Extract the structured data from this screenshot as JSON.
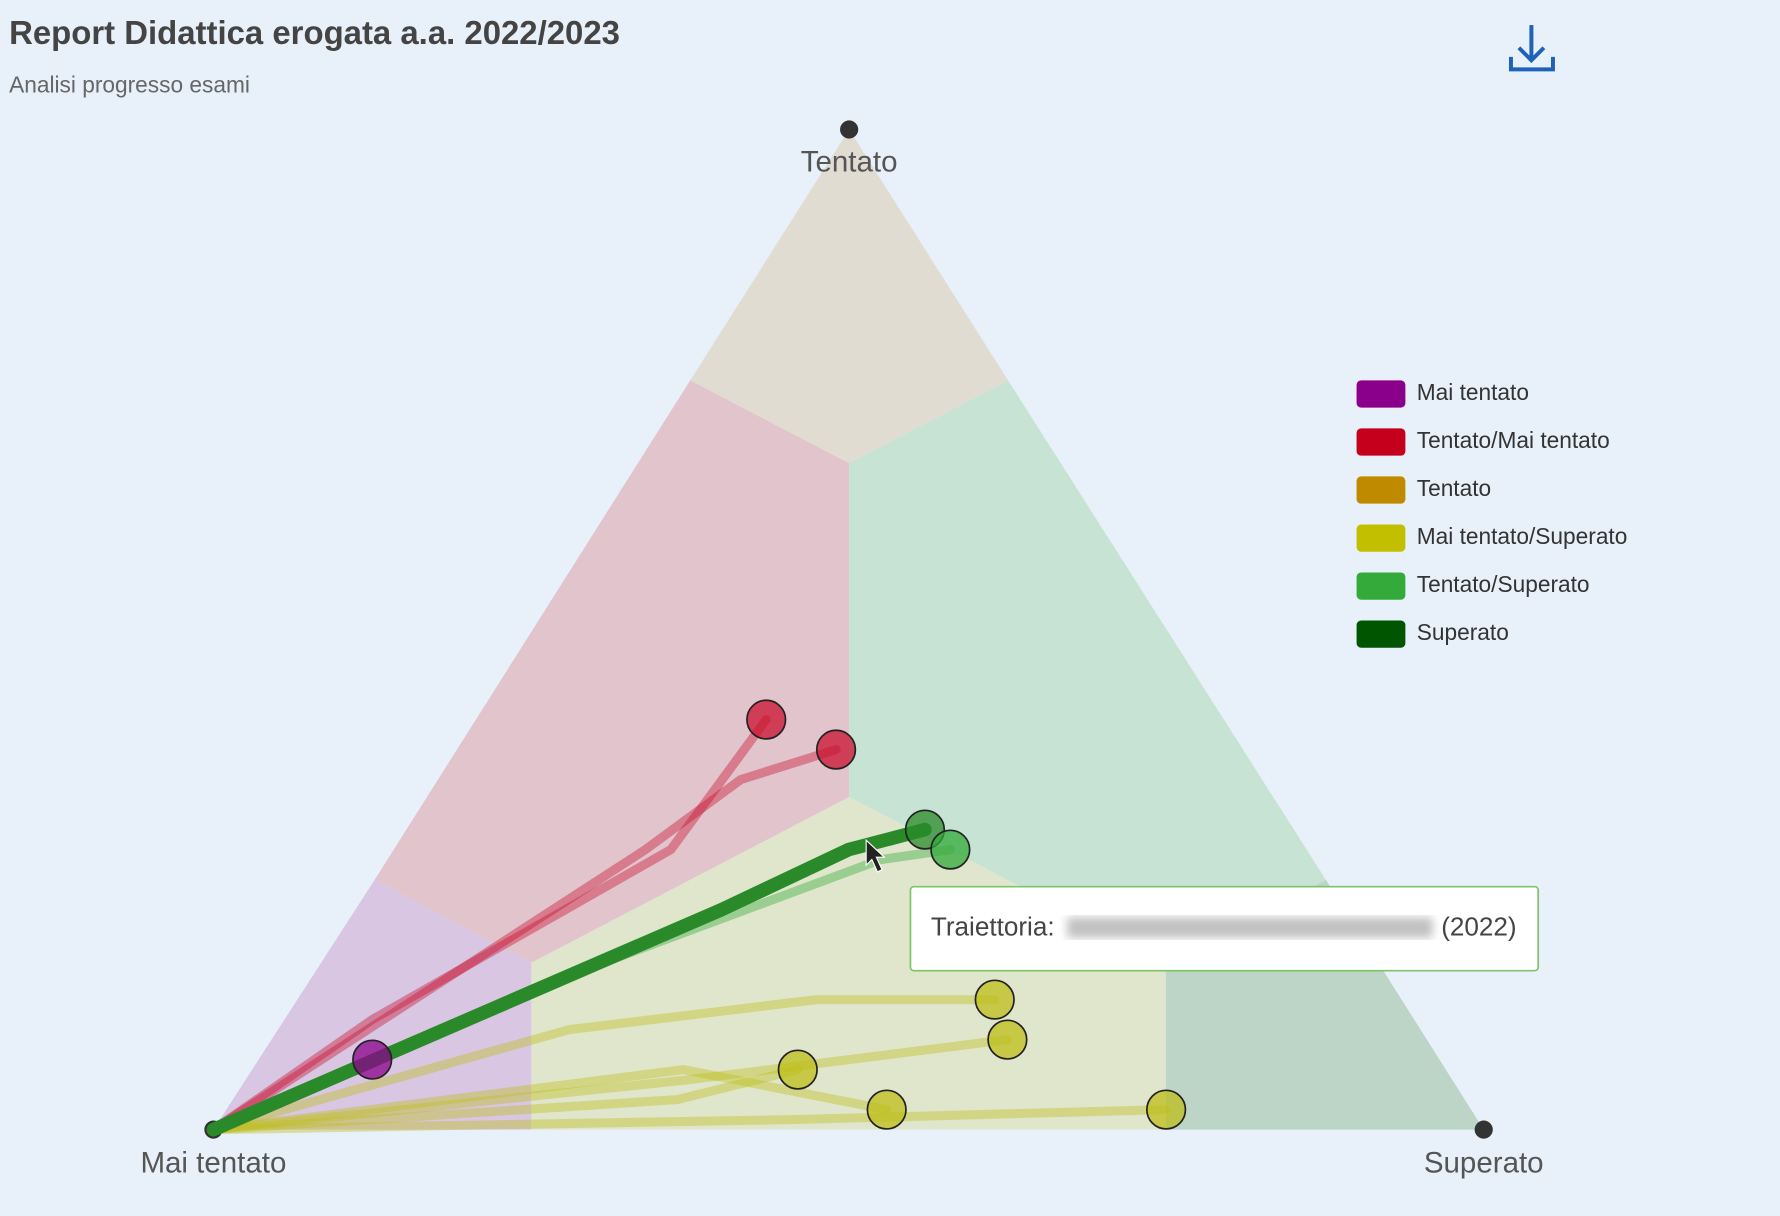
{
  "chart_data": {
    "type": "ternary",
    "title": "Report Didattica erogata a.a. 2022/2023",
    "subtitle": "Analisi progresso esami",
    "corners": [
      "Mai tentato",
      "Tentato",
      "Superato"
    ],
    "legend": [
      {
        "name": "Mai tentato",
        "color": "#8b008b"
      },
      {
        "name": "Tentato/Mai tentato",
        "color": "#c4001c"
      },
      {
        "name": "Tentato",
        "color": "#c08a00"
      },
      {
        "name": "Mai tentato/Superato",
        "color": "#c2bf00"
      },
      {
        "name": "Tentato/Superato",
        "color": "#33aa3a"
      },
      {
        "name": "Superato",
        "color": "#005500"
      }
    ],
    "trajectories": [
      {
        "color": "#8b008b",
        "tentato": [
          0,
          7
        ],
        "superato": [
          0,
          9
        ]
      },
      {
        "color": "#c8102e",
        "tentato": [
          0,
          11,
          28,
          41
        ],
        "superato": [
          0,
          7,
          22,
          23
        ]
      },
      {
        "color": "#c8102e",
        "tentato": [
          0,
          28,
          35,
          38
        ],
        "superato": [
          0,
          20,
          24,
          30
        ]
      },
      {
        "color": "#2a8a2a",
        "tentato": [
          0,
          22,
          28,
          30
        ],
        "superato": [
          0,
          29,
          36,
          41
        ],
        "highlighted": true
      },
      {
        "color": "#33aa3a",
        "tentato": [
          0,
          14,
          27,
          28
        ],
        "superato": [
          0,
          18,
          39,
          44
        ]
      },
      {
        "color": "#bdbd1a",
        "tentato": [
          0,
          10,
          13,
          13
        ],
        "superato": [
          0,
          23,
          41,
          55
        ]
      },
      {
        "color": "#bdbd1a",
        "tentato": [
          0,
          5,
          9
        ],
        "superato": [
          0,
          35,
          58
        ]
      },
      {
        "color": "#bdbd1a",
        "tentato": [
          0,
          3,
          6
        ],
        "superato": [
          0,
          35,
          43
        ]
      },
      {
        "color": "#bdbd1a",
        "tentato": [
          0,
          6,
          2
        ],
        "superato": [
          0,
          34,
          52
        ]
      },
      {
        "color": "#bdbd1a",
        "tentato": [
          0,
          1,
          2
        ],
        "superato": [
          0,
          45,
          74
        ]
      }
    ],
    "tooltip": {
      "label": "Traiettoria:",
      "suffix": "(2022)"
    }
  }
}
